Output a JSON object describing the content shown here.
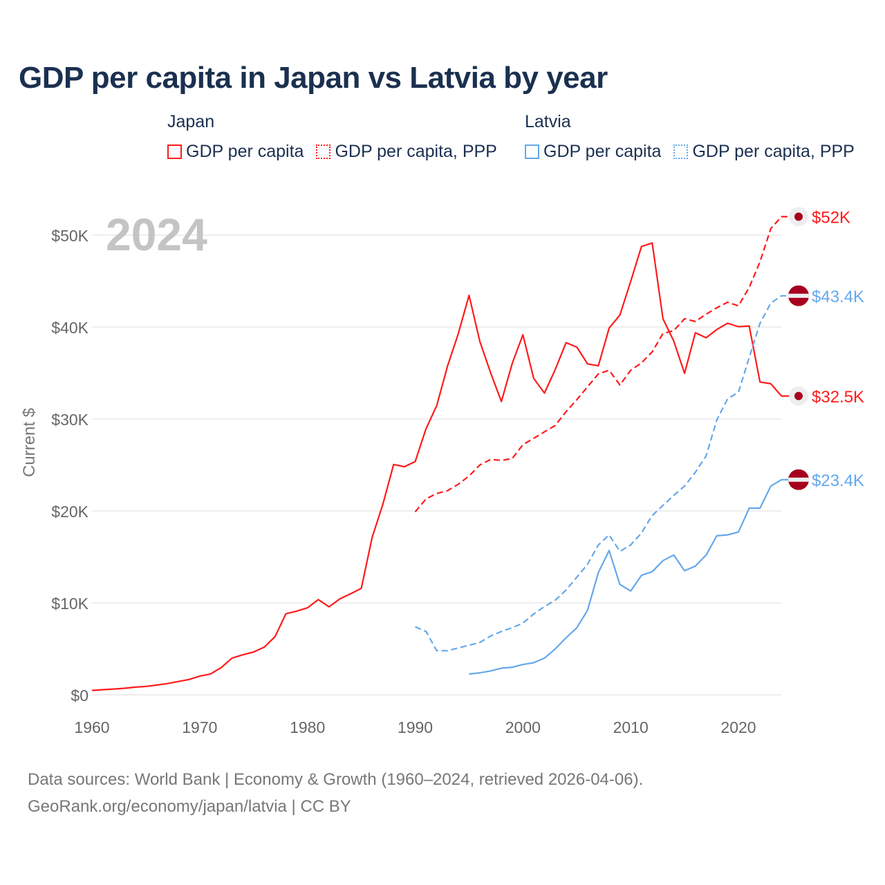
{
  "chart_data": {
    "type": "line",
    "title": "GDP per capita in Japan vs Latvia by year",
    "ylabel": "Current $",
    "xlabel": "",
    "year_watermark": "2024",
    "xlim": [
      1960,
      2024
    ],
    "ylim": [
      0,
      52000
    ],
    "x_ticks": [
      1960,
      1970,
      1980,
      1990,
      2000,
      2010,
      2020
    ],
    "y_ticks": [
      0,
      10000,
      20000,
      30000,
      40000,
      50000
    ],
    "y_tick_labels": [
      "$0",
      "$10K",
      "$20K",
      "$30K",
      "$40K",
      "$50K"
    ],
    "grid": true,
    "legend": {
      "placement": "top",
      "groups": [
        {
          "name": "Japan",
          "items": [
            "GDP per capita",
            "GDP per capita, PPP"
          ]
        },
        {
          "name": "Latvia",
          "items": [
            "GDP per capita",
            "GDP per capita, PPP"
          ]
        }
      ]
    },
    "series": [
      {
        "name": "Japan GDP per capita",
        "country": "Japan",
        "color": "#ff1a1a",
        "dash": false,
        "start": 1960,
        "values": [
          479,
          564,
          633,
          717,
          835,
          919,
          1058,
          1229,
          1450,
          1669,
          2037,
          2272,
          2967,
          3997,
          4354,
          4659,
          5197,
          6335,
          8821,
          9105,
          9463,
          10361,
          9578,
          10425,
          10984,
          11585,
          17112,
          20745,
          25052,
          24813,
          25371,
          28925,
          31465,
          35766,
          39269,
          43440,
          38437,
          35022,
          31903,
          36027,
          39169,
          34406,
          32821,
          35387,
          38299,
          37813,
          35991,
          35779,
          39876,
          41309,
          44968,
          48760,
          49145,
          40898,
          38475,
          34961,
          39375,
          38834,
          39727,
          40416,
          40040,
          40115,
          34017,
          33834,
          32500
        ],
        "end_label": "$32.5K"
      },
      {
        "name": "Japan GDP per capita, PPP",
        "country": "Japan",
        "color": "#ff1a1a",
        "dash": true,
        "start": 1990,
        "values": [
          19900,
          21300,
          21900,
          22200,
          22900,
          23800,
          25000,
          25600,
          25500,
          25700,
          27200,
          27900,
          28600,
          29300,
          30800,
          32100,
          33500,
          34900,
          35300,
          33700,
          35300,
          36100,
          37300,
          39300,
          39600,
          40900,
          40600,
          41400,
          42100,
          42700,
          42300,
          44300,
          47100,
          50700,
          52000
        ],
        "end_label": "$52K"
      },
      {
        "name": "Latvia GDP per capita",
        "country": "Latvia",
        "color": "#64a8eb",
        "dash": false,
        "start": 1995,
        "values": [
          2260,
          2400,
          2600,
          2900,
          3000,
          3300,
          3500,
          4000,
          5000,
          6200,
          7300,
          9200,
          13300,
          15700,
          12000,
          11300,
          13000,
          13400,
          14600,
          15200,
          13500,
          14000,
          15200,
          17300,
          17400,
          17700,
          20300,
          20300,
          22700,
          23400
        ],
        "end_label": "$23.4K"
      },
      {
        "name": "Latvia GDP per capita, PPP",
        "country": "Latvia",
        "color": "#64a8eb",
        "dash": true,
        "start": 1990,
        "values": [
          7400,
          6900,
          4800,
          4800,
          5100,
          5400,
          5700,
          6400,
          6900,
          7300,
          7800,
          8800,
          9600,
          10300,
          11400,
          12800,
          14200,
          16300,
          17400,
          15600,
          16300,
          17600,
          19500,
          20600,
          21700,
          22700,
          24200,
          26000,
          29900,
          32200,
          32900,
          36700,
          40400,
          42600,
          43400
        ],
        "end_label": "$43.4K"
      }
    ]
  },
  "footer": {
    "line1": "Data sources: World Bank | Economy & Growth (1960–2024, retrieved 2026-04-06).",
    "line2": "GeoRank.org/economy/japan/latvia | CC BY"
  },
  "colors": {
    "japan": "#ff1a1a",
    "latvia": "#64a8eb",
    "flag_red": "#a6001e",
    "title": "#1b3050"
  }
}
